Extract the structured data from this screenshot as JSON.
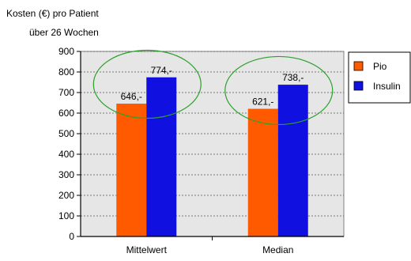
{
  "chart_data": {
    "type": "bar",
    "ylabel_line1": "Kosten (€) pro Patient",
    "ylabel_line2": "über 26 Wochen",
    "categories": [
      "Mittelwert",
      "Median"
    ],
    "series": [
      {
        "name": "Pio",
        "color": "#ff5a00",
        "values": [
          646,
          621
        ],
        "labels": [
          "646,-",
          "621,-"
        ]
      },
      {
        "name": "Insulin",
        "color": "#1010e0",
        "values": [
          774,
          738
        ],
        "labels": [
          "774,-",
          "738,-"
        ]
      }
    ],
    "ylim": [
      0,
      900
    ],
    "yticks": [
      {
        "value": 0,
        "label": "0"
      },
      {
        "value": 100,
        "label": "100"
      },
      {
        "value": 200,
        "label": "200"
      },
      {
        "value": 300,
        "label": "300"
      },
      {
        "value": 400,
        "label": "400"
      },
      {
        "value": 500,
        "label": "500"
      },
      {
        "value": 600,
        "label": "600"
      },
      {
        "value": 700,
        "label": "700"
      },
      {
        "value": 800,
        "label": "800"
      },
      {
        "value": 900,
        "label": "900"
      }
    ],
    "grid": true,
    "plot_background": "#e6e6e6",
    "highlight_color": "#2ca02c",
    "legend_position": "right"
  }
}
